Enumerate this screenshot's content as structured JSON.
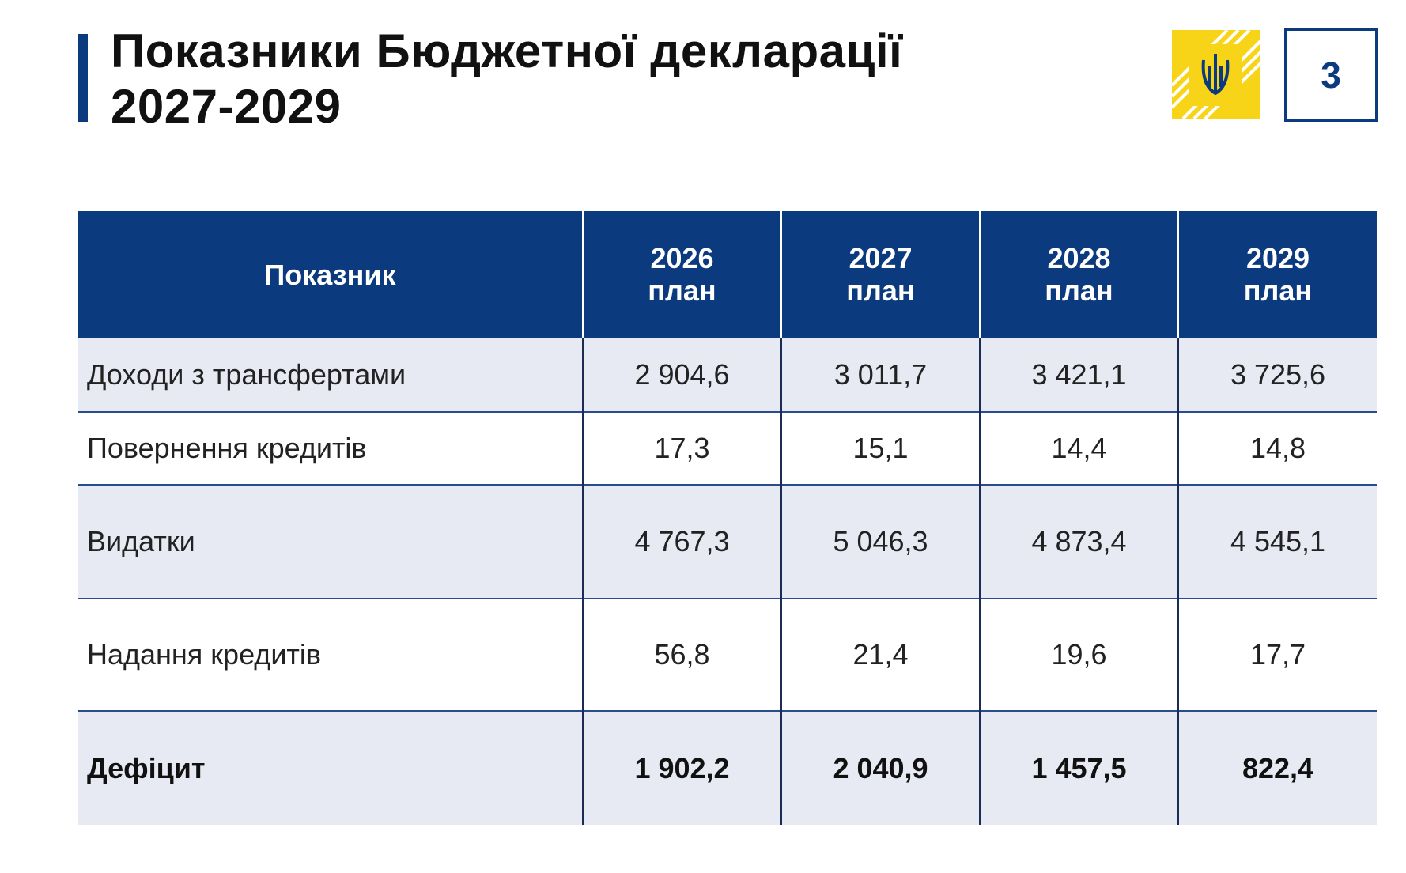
{
  "header": {
    "title_lines": [
      "Показники Бюджетної декларації",
      "2027-2029"
    ],
    "page_number": "3"
  },
  "table": {
    "columns": [
      {
        "lines": [
          "Показник"
        ]
      },
      {
        "lines": [
          "2026",
          "план"
        ]
      },
      {
        "lines": [
          "2027",
          "план"
        ]
      },
      {
        "lines": [
          "2028",
          "план"
        ]
      },
      {
        "lines": [
          "2029",
          "план"
        ]
      }
    ],
    "rows": [
      [
        "Доходи з трансфертами",
        "2 904,6",
        "3 011,7",
        "3 421,1",
        "3 725,6"
      ],
      [
        "Повернення кредитів",
        "17,3",
        "15,1",
        "14,4",
        "14,8"
      ],
      [
        "Видатки",
        "4 767,3",
        "5 046,3",
        "4 873,4",
        "4 545,1"
      ],
      [
        "Надання кредитів",
        "56,8",
        "21,4",
        "19,6",
        "17,7"
      ],
      [
        "Дефіцит",
        "1 902,2",
        "2 040,9",
        "1 457,5",
        "822,4"
      ]
    ],
    "bold_rows": [
      4
    ]
  }
}
